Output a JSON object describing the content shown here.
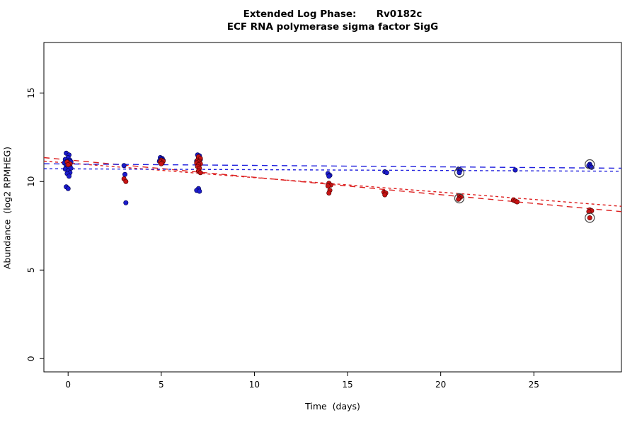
{
  "title": {
    "line1": "Extended Log Phase:      Rv0182c",
    "line2": "ECF RNA polymerase sigma factor SigG"
  },
  "chart_data": {
    "type": "scatter",
    "title": "Extended Log Phase: Rv0182c",
    "subtitle": "ECF RNA polymerase sigma factor SigG",
    "xlabel": "Time  (days)",
    "ylabel": "Abundance  (log2 RPMHEG)",
    "xlim": [
      -1.3,
      29.7
    ],
    "ylim": [
      -0.75,
      17.85
    ],
    "x_ticks": [
      0,
      5,
      10,
      15,
      20,
      25
    ],
    "y_ticks": [
      0,
      5,
      10,
      15
    ],
    "grid": false,
    "legend": "none",
    "series": [
      {
        "name": "condition-blue",
        "color": "#1c1ccd",
        "edge": "#000050",
        "points": [
          [
            -0.1,
            11.6
          ],
          [
            0.05,
            11.5
          ],
          [
            0.0,
            11.35
          ],
          [
            -0.15,
            11.25
          ],
          [
            0.1,
            11.2
          ],
          [
            -0.05,
            11.15
          ],
          [
            0.15,
            11.1
          ],
          [
            -0.2,
            11.05
          ],
          [
            0.0,
            11.0
          ],
          [
            0.1,
            10.95
          ],
          [
            -0.1,
            10.9
          ],
          [
            0.05,
            10.85
          ],
          [
            -0.05,
            10.8
          ],
          [
            0.15,
            10.75
          ],
          [
            -0.15,
            10.7
          ],
          [
            0.0,
            10.6
          ],
          [
            0.1,
            10.5
          ],
          [
            -0.05,
            10.45
          ],
          [
            0.05,
            10.3
          ],
          [
            -0.1,
            9.7
          ],
          [
            0.0,
            9.6
          ],
          [
            3.0,
            10.9
          ],
          [
            3.05,
            10.4
          ],
          [
            3.1,
            8.8
          ],
          [
            4.95,
            11.35
          ],
          [
            5.05,
            11.3
          ],
          [
            5.0,
            11.25
          ],
          [
            5.1,
            11.2
          ],
          [
            4.9,
            11.15
          ],
          [
            5.05,
            11.1
          ],
          [
            6.95,
            11.5
          ],
          [
            7.05,
            11.45
          ],
          [
            7.0,
            11.35
          ],
          [
            7.1,
            11.25
          ],
          [
            6.9,
            11.15
          ],
          [
            7.05,
            11.05
          ],
          [
            7.0,
            10.95
          ],
          [
            6.95,
            10.85
          ],
          [
            7.0,
            9.6
          ],
          [
            6.9,
            9.5
          ],
          [
            7.05,
            9.45
          ],
          [
            13.95,
            10.45
          ],
          [
            14.05,
            10.35
          ],
          [
            14.0,
            10.3
          ],
          [
            17.0,
            10.55
          ],
          [
            17.1,
            10.5
          ],
          [
            20.95,
            10.7
          ],
          [
            21.05,
            10.65
          ],
          [
            21.0,
            10.5
          ],
          [
            24.0,
            10.65
          ],
          [
            28.0,
            10.97
          ],
          [
            27.95,
            10.9
          ],
          [
            28.05,
            10.85
          ],
          [
            28.1,
            10.8
          ]
        ]
      },
      {
        "name": "condition-red",
        "color": "#c81414",
        "edge": "#500000",
        "points": [
          [
            -0.05,
            11.1
          ],
          [
            0.1,
            11.0
          ],
          [
            0.0,
            10.95
          ],
          [
            3.0,
            10.15
          ],
          [
            3.1,
            10.0
          ],
          [
            5.0,
            11.2
          ],
          [
            5.1,
            11.15
          ],
          [
            4.95,
            11.1
          ],
          [
            5.05,
            11.05
          ],
          [
            5.0,
            11.0
          ],
          [
            7.0,
            11.4
          ],
          [
            7.1,
            11.3
          ],
          [
            6.95,
            11.2
          ],
          [
            7.05,
            11.15
          ],
          [
            7.0,
            11.1
          ],
          [
            6.9,
            11.05
          ],
          [
            7.1,
            11.0
          ],
          [
            7.0,
            10.95
          ],
          [
            6.95,
            10.85
          ],
          [
            7.05,
            10.75
          ],
          [
            7.0,
            10.6
          ],
          [
            7.1,
            10.5
          ],
          [
            14.0,
            9.9
          ],
          [
            14.1,
            9.8
          ],
          [
            13.95,
            9.75
          ],
          [
            14.05,
            9.5
          ],
          [
            14.0,
            9.35
          ],
          [
            16.95,
            9.4
          ],
          [
            17.05,
            9.35
          ],
          [
            17.0,
            9.25
          ],
          [
            21.0,
            9.2
          ],
          [
            21.1,
            9.15
          ],
          [
            21.0,
            9.05
          ],
          [
            20.95,
            9.0
          ],
          [
            23.9,
            8.95
          ],
          [
            24.0,
            8.9
          ],
          [
            24.1,
            8.85
          ],
          [
            28.0,
            8.4
          ],
          [
            28.1,
            8.35
          ],
          [
            27.95,
            8.3
          ],
          [
            28.0,
            7.95
          ]
        ]
      }
    ],
    "circled_points": {
      "color": "#444444",
      "points": [
        [
          21,
          10.5
        ],
        [
          21,
          9.05
        ],
        [
          28,
          10.97
        ],
        [
          28,
          7.95
        ]
      ]
    },
    "trend_lines": [
      {
        "name": "red-fit-1",
        "color": "#dd2020",
        "dash": "8 6",
        "x1": -1.3,
        "y1": 11.35,
        "x2": 29.7,
        "y2": 8.3
      },
      {
        "name": "red-fit-2",
        "color": "#dd2020",
        "dash": "4 4",
        "x1": -1.3,
        "y1": 11.15,
        "x2": 29.7,
        "y2": 8.6
      },
      {
        "name": "blue-fit-1",
        "color": "#2020dd",
        "dash": "8 6",
        "x1": -1.3,
        "y1": 11.0,
        "x2": 29.7,
        "y2": 10.75
      },
      {
        "name": "blue-fit-2",
        "color": "#2020dd",
        "dash": "4 4",
        "x1": -1.3,
        "y1": 10.72,
        "x2": 29.7,
        "y2": 10.58
      }
    ]
  }
}
